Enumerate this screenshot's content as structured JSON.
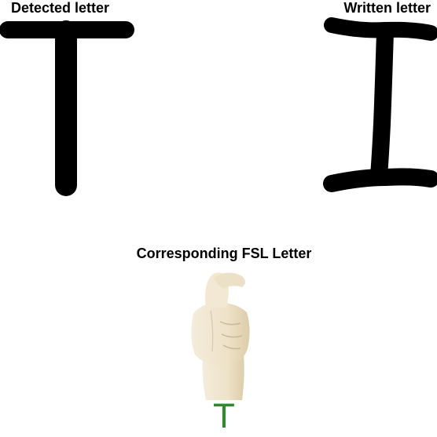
{
  "panels": {
    "detected": {
      "heading": "Detected letter",
      "letter": "T"
    },
    "written": {
      "heading": "Written letter",
      "letter": "I"
    },
    "fsl": {
      "heading": "Corresponding FSL Letter",
      "caption_letter": "T",
      "caption_color": "#2f8a2f",
      "image_icon": "fsl-hand-sign-t-icon"
    }
  },
  "colors": {
    "stroke": "#000000",
    "background": "#ffffff",
    "skin": "#efe6d2"
  }
}
